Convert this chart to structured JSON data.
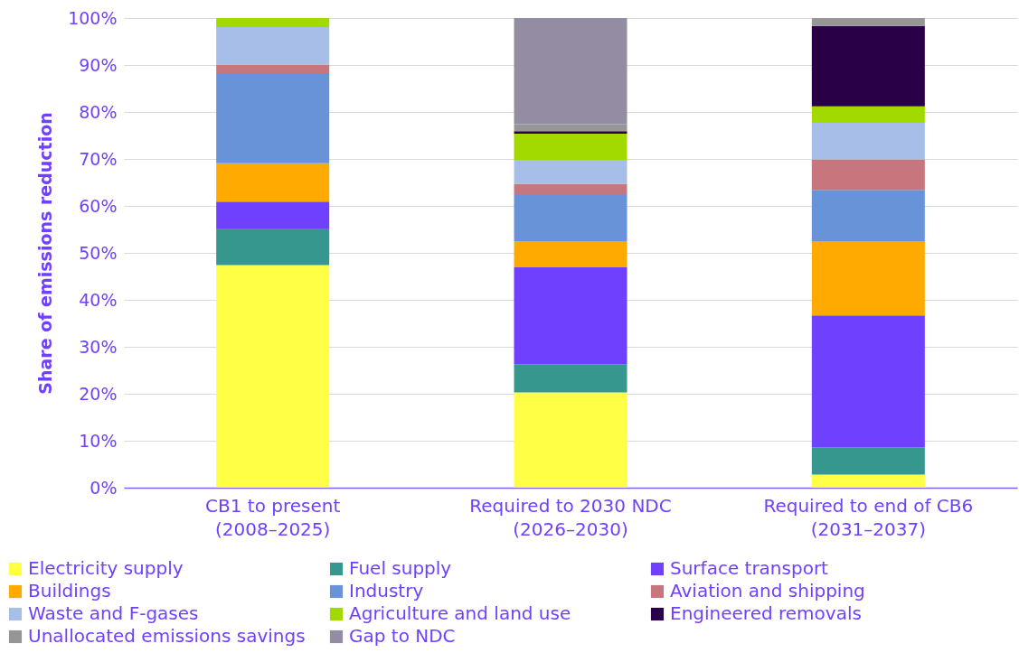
{
  "chart_data": {
    "type": "bar",
    "stacked": true,
    "ylabel": "Share of emissions reduction",
    "categories": [
      "CB1 to present\n(2008–2025)",
      "Required to 2030 NDC\n(2026–2030)",
      "Required to end of CB6\n(2031–2037)"
    ],
    "series": [
      {
        "name": "Electricity supply",
        "color": "#ffff45",
        "values": [
          47.4,
          20.3,
          2.8
        ]
      },
      {
        "name": "Fuel supply",
        "color": "#36978f",
        "values": [
          7.8,
          6.0,
          5.8
        ]
      },
      {
        "name": "Surface transport",
        "color": "#7040ff",
        "values": [
          5.7,
          20.6,
          28.1
        ]
      },
      {
        "name": "Buildings",
        "color": "#ffaa00",
        "values": [
          8.2,
          5.6,
          15.8
        ]
      },
      {
        "name": "Industry",
        "color": "#6893d8",
        "values": [
          19.0,
          10.0,
          10.9
        ]
      },
      {
        "name": "Aviation and shipping",
        "color": "#c8767e",
        "values": [
          2.0,
          2.2,
          6.5
        ]
      },
      {
        "name": "Waste and F-gases",
        "color": "#a6bee8",
        "values": [
          8.0,
          5.1,
          7.8
        ]
      },
      {
        "name": "Agriculture and land use",
        "color": "#a2da00",
        "values": [
          1.9,
          5.6,
          3.5
        ]
      },
      {
        "name": "Engineered removals",
        "color": "#290048",
        "values": [
          null,
          0.5,
          17.1
        ]
      },
      {
        "name": "Unallocated emissions savings",
        "color": "#969696",
        "values": [
          null,
          1.5,
          1.7
        ]
      },
      {
        "name": "Gap to NDC",
        "color": "#948ca3",
        "values": [
          null,
          22.6,
          null
        ]
      }
    ],
    "ylim": [
      0,
      100
    ],
    "yticks": [
      {
        "value": 0,
        "label": "0%"
      },
      {
        "value": 10,
        "label": "10%"
      },
      {
        "value": 20,
        "label": "20%"
      },
      {
        "value": 30,
        "label": "30%"
      },
      {
        "value": 40,
        "label": "40%"
      },
      {
        "value": 50,
        "label": "50%"
      },
      {
        "value": 60,
        "label": "60%"
      },
      {
        "value": 70,
        "label": "70%"
      },
      {
        "value": 80,
        "label": "80%"
      },
      {
        "value": 90,
        "label": "90%"
      },
      {
        "value": 100,
        "label": "100%"
      }
    ],
    "grid": "y",
    "legend": "bottom"
  }
}
